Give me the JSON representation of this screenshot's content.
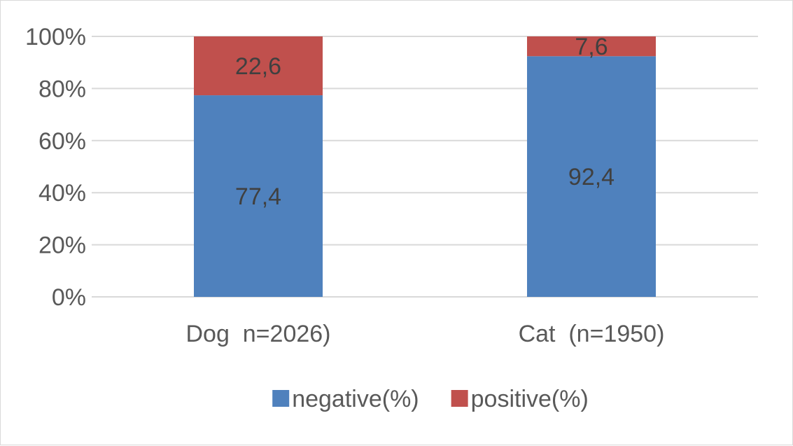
{
  "chart_data": {
    "type": "bar",
    "stacked": true,
    "percent_scale": true,
    "categories": [
      "Dog  n=2026)",
      "Cat  (n=1950)"
    ],
    "series": [
      {
        "name": "negative(%)",
        "values": [
          77.4,
          92.4
        ],
        "labels": [
          "77,4",
          "92,4"
        ],
        "color": "#4f81bd"
      },
      {
        "name": "positive(%)",
        "values": [
          22.6,
          7.6
        ],
        "labels": [
          "22,6",
          "7,6"
        ],
        "color": "#c0504d"
      }
    ],
    "yticks": [
      "0%",
      "20%",
      "40%",
      "60%",
      "80%",
      "100%"
    ],
    "ylim": [
      0,
      100
    ],
    "title": "",
    "xlabel": "",
    "ylabel": "",
    "grid": true,
    "legend_position": "bottom",
    "colors": {
      "grid": "#d9d9d9",
      "axis_text": "#595959",
      "data_text": "#404040"
    }
  }
}
